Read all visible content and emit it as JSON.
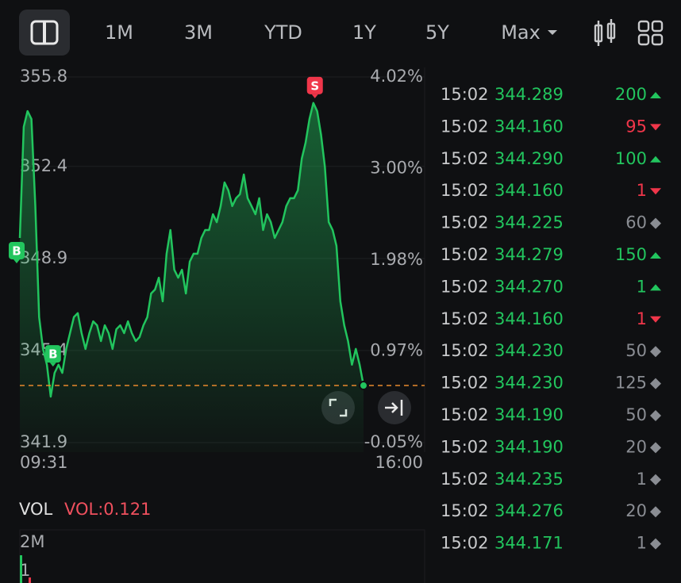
{
  "tabs": [
    "1M",
    "3M",
    "YTD",
    "1Y",
    "5Y",
    "Max"
  ],
  "chart": {
    "type": "line",
    "start_time": "09:31",
    "end_time": "16:00",
    "color": "#22c55e",
    "ylim": [
      341.9,
      355.8
    ],
    "yticks": [
      341.9,
      345.4,
      348.9,
      352.4,
      355.8
    ],
    "y2lim": [
      -0.05,
      4.02
    ],
    "y2ticks": [
      {
        "value": -0.05,
        "label": "-0.05%"
      },
      {
        "value": 0.97,
        "label": "0.97%"
      },
      {
        "value": 1.98,
        "label": "1.98%"
      },
      {
        "value": 3.0,
        "label": "3.00%"
      },
      {
        "value": 4.02,
        "label": "4.02%"
      }
    ],
    "grid": true,
    "values": [
      349.68,
      353.9,
      354.5,
      354.2,
      350.89,
      346.67,
      345.46,
      344.86,
      343.65,
      344.55,
      344.86,
      344.55,
      345.46,
      346.06,
      346.67,
      346.82,
      346.06,
      345.46,
      346.06,
      346.51,
      346.36,
      345.76,
      346.36,
      346.06,
      345.46,
      346.21,
      346.36,
      346.06,
      346.51,
      346.06,
      345.76,
      345.91,
      346.36,
      346.67,
      347.57,
      347.72,
      348.17,
      347.27,
      349.08,
      349.98,
      348.47,
      348.17,
      348.47,
      347.57,
      348.78,
      349.08,
      349.08,
      349.68,
      349.98,
      349.98,
      350.58,
      350.28,
      350.89,
      351.79,
      351.49,
      350.89,
      351.19,
      351.34,
      352.09,
      351.19,
      350.89,
      350.58,
      351.19,
      349.98,
      350.58,
      350.28,
      349.68,
      349.98,
      350.28,
      350.89,
      351.19,
      351.19,
      351.49,
      352.69,
      353.3,
      354.2,
      354.81,
      354.5,
      353.6,
      352.39,
      350.28,
      349.98,
      349.38,
      347.27,
      346.36,
      345.76,
      344.86,
      345.46,
      344.86,
      344.07
    ],
    "markers": [
      "B",
      "B",
      "S"
    ]
  },
  "volume": {
    "label": "VOL",
    "value_label": "VOL:0.121",
    "ticks": [
      "2M",
      "1"
    ]
  },
  "trades": [
    {
      "time": "15:02",
      "price": "344.289",
      "qty": "200",
      "dir": "up"
    },
    {
      "time": "15:02",
      "price": "344.160",
      "qty": "95",
      "dir": "down"
    },
    {
      "time": "15:02",
      "price": "344.290",
      "qty": "100",
      "dir": "up"
    },
    {
      "time": "15:02",
      "price": "344.160",
      "qty": "1",
      "dir": "down"
    },
    {
      "time": "15:02",
      "price": "344.225",
      "qty": "60",
      "dir": "neutral"
    },
    {
      "time": "15:02",
      "price": "344.279",
      "qty": "150",
      "dir": "up"
    },
    {
      "time": "15:02",
      "price": "344.270",
      "qty": "1",
      "dir": "up"
    },
    {
      "time": "15:02",
      "price": "344.160",
      "qty": "1",
      "dir": "down"
    },
    {
      "time": "15:02",
      "price": "344.230",
      "qty": "50",
      "dir": "neutral"
    },
    {
      "time": "15:02",
      "price": "344.230",
      "qty": "125",
      "dir": "neutral"
    },
    {
      "time": "15:02",
      "price": "344.190",
      "qty": "50",
      "dir": "neutral"
    },
    {
      "time": "15:02",
      "price": "344.190",
      "qty": "20",
      "dir": "neutral"
    },
    {
      "time": "15:02",
      "price": "344.235",
      "qty": "1",
      "dir": "neutral"
    },
    {
      "time": "15:02",
      "price": "344.276",
      "qty": "20",
      "dir": "neutral"
    },
    {
      "time": "15:02",
      "price": "344.171",
      "qty": "1",
      "dir": "neutral"
    }
  ]
}
